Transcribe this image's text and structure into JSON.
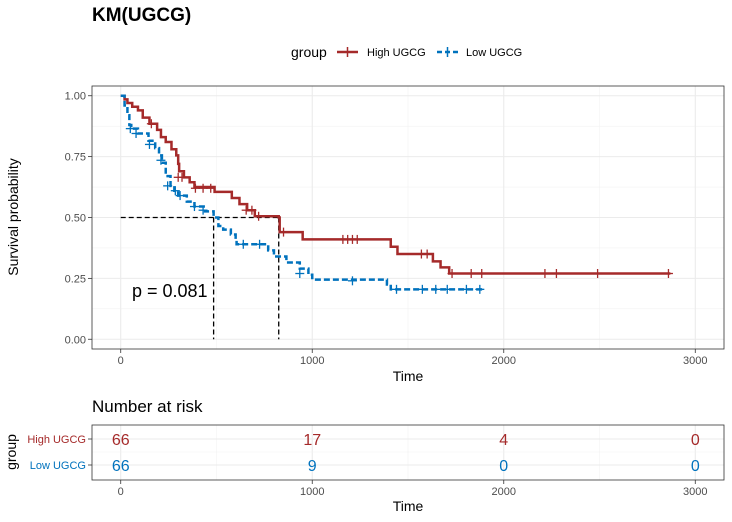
{
  "chart_data": {
    "type": "line",
    "title": "KM(UGCG)",
    "xlabel": "Time",
    "ylabel": "Survival probability",
    "xlim": [
      -150,
      3150
    ],
    "ylim": [
      -0.04,
      1.04
    ],
    "x_ticks": [
      0,
      1000,
      2000,
      3000
    ],
    "y_ticks": [
      0,
      0.25,
      0.5,
      0.75,
      1.0
    ],
    "y_tick_labels": [
      "0.00",
      "0.25",
      "0.50",
      "0.75",
      "1.00"
    ],
    "grid": true,
    "legend": {
      "title": "group",
      "position": "top"
    },
    "p_value_text": "p = 0.081",
    "median_line": {
      "y": 0.5,
      "x_values": [
        485,
        825
      ]
    },
    "series": [
      {
        "name": "High UGCG",
        "color": "#a52a2a",
        "dash": "solid",
        "steps": [
          [
            0,
            1.0
          ],
          [
            20,
            0.985
          ],
          [
            35,
            0.97
          ],
          [
            60,
            0.955
          ],
          [
            90,
            0.94
          ],
          [
            115,
            0.91
          ],
          [
            150,
            0.885
          ],
          [
            190,
            0.86
          ],
          [
            210,
            0.83
          ],
          [
            235,
            0.81
          ],
          [
            265,
            0.78
          ],
          [
            290,
            0.755
          ],
          [
            300,
            0.72
          ],
          [
            305,
            0.69
          ],
          [
            330,
            0.665
          ],
          [
            360,
            0.645
          ],
          [
            385,
            0.625
          ],
          [
            490,
            0.605
          ],
          [
            580,
            0.58
          ],
          [
            620,
            0.555
          ],
          [
            660,
            0.53
          ],
          [
            700,
            0.505
          ],
          [
            825,
            0.5
          ],
          [
            830,
            0.44
          ],
          [
            950,
            0.41
          ],
          [
            1410,
            0.38
          ],
          [
            1445,
            0.35
          ],
          [
            1630,
            0.32
          ],
          [
            1670,
            0.295
          ],
          [
            1715,
            0.27
          ],
          [
            2870,
            0.27
          ]
        ],
        "censors": [
          [
            160,
            0.885
          ],
          [
            300,
            0.665
          ],
          [
            320,
            0.665
          ],
          [
            390,
            0.62
          ],
          [
            430,
            0.62
          ],
          [
            470,
            0.62
          ],
          [
            655,
            0.53
          ],
          [
            685,
            0.53
          ],
          [
            720,
            0.505
          ],
          [
            850,
            0.44
          ],
          [
            1160,
            0.41
          ],
          [
            1185,
            0.41
          ],
          [
            1210,
            0.41
          ],
          [
            1235,
            0.41
          ],
          [
            1570,
            0.35
          ],
          [
            1600,
            0.35
          ],
          [
            1730,
            0.27
          ],
          [
            1830,
            0.27
          ],
          [
            1885,
            0.27
          ],
          [
            2215,
            0.27
          ],
          [
            2275,
            0.27
          ],
          [
            2490,
            0.27
          ],
          [
            2860,
            0.27
          ]
        ]
      },
      {
        "name": "Low UGCG",
        "color": "#0072bd",
        "dash": "dashed",
        "steps": [
          [
            0,
            1.0
          ],
          [
            20,
            0.96
          ],
          [
            35,
            0.92
          ],
          [
            45,
            0.88
          ],
          [
            55,
            0.865
          ],
          [
            90,
            0.845
          ],
          [
            145,
            0.815
          ],
          [
            180,
            0.785
          ],
          [
            200,
            0.755
          ],
          [
            215,
            0.725
          ],
          [
            235,
            0.67
          ],
          [
            260,
            0.63
          ],
          [
            280,
            0.61
          ],
          [
            300,
            0.59
          ],
          [
            345,
            0.565
          ],
          [
            385,
            0.545
          ],
          [
            440,
            0.525
          ],
          [
            485,
            0.5
          ],
          [
            510,
            0.465
          ],
          [
            535,
            0.45
          ],
          [
            575,
            0.43
          ],
          [
            600,
            0.41
          ],
          [
            605,
            0.39
          ],
          [
            770,
            0.365
          ],
          [
            800,
            0.34
          ],
          [
            865,
            0.315
          ],
          [
            935,
            0.29
          ],
          [
            980,
            0.265
          ],
          [
            1000,
            0.245
          ],
          [
            1390,
            0.225
          ],
          [
            1410,
            0.205
          ],
          [
            1890,
            0.205
          ]
        ],
        "censors": [
          [
            50,
            0.865
          ],
          [
            80,
            0.845
          ],
          [
            150,
            0.8
          ],
          [
            210,
            0.735
          ],
          [
            245,
            0.63
          ],
          [
            285,
            0.61
          ],
          [
            310,
            0.59
          ],
          [
            385,
            0.545
          ],
          [
            430,
            0.53
          ],
          [
            640,
            0.39
          ],
          [
            725,
            0.39
          ],
          [
            935,
            0.27
          ],
          [
            1210,
            0.24
          ],
          [
            1440,
            0.205
          ],
          [
            1575,
            0.205
          ],
          [
            1645,
            0.205
          ],
          [
            1705,
            0.205
          ],
          [
            1805,
            0.205
          ],
          [
            1875,
            0.205
          ]
        ]
      }
    ]
  },
  "risk_table": {
    "title": "Number at risk",
    "xlabel": "Time",
    "ylabel": "group",
    "x_ticks": [
      0,
      1000,
      2000,
      3000
    ],
    "rows": [
      {
        "name": "High UGCG",
        "color": "#a52a2a",
        "values": [
          "66",
          "17",
          "4",
          "0"
        ]
      },
      {
        "name": "Low UGCG",
        "color": "#0072bd",
        "values": [
          "66",
          "9",
          "0",
          "0"
        ]
      }
    ]
  }
}
